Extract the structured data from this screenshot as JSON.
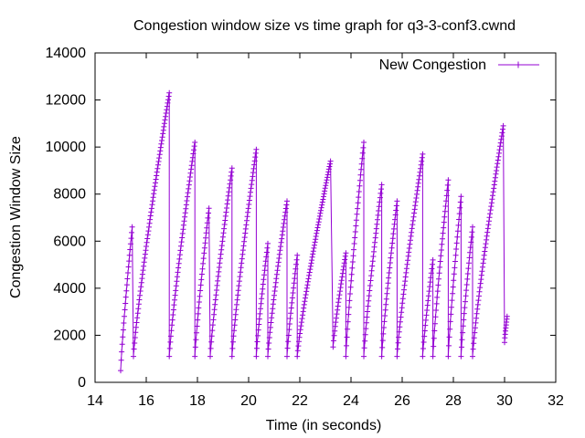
{
  "chart_data": {
    "type": "line",
    "title": "Congestion window size vs time graph for q3-3-conf3.cwnd",
    "xlabel": "Time (in seconds)",
    "ylabel": "Congestion Window Size",
    "xlim": [
      14,
      32
    ],
    "ylim": [
      0,
      14000
    ],
    "x_ticks": [
      14,
      16,
      18,
      20,
      22,
      24,
      26,
      28,
      30,
      32
    ],
    "y_ticks": [
      0,
      2000,
      4000,
      6000,
      8000,
      10000,
      12000,
      14000
    ],
    "grid": false,
    "legend_position": "top-right",
    "series": [
      {
        "name": "New Congestion",
        "color": "#9400d3",
        "marker": "plus",
        "cycles": [
          {
            "t0": 15.0,
            "t1": 15.45,
            "y0": 500,
            "y1": 6600
          },
          {
            "t0": 15.5,
            "t1": 16.9,
            "y0": 1100,
            "y1": 12300
          },
          {
            "t0": 16.9,
            "t1": 17.9,
            "y0": 1100,
            "y1": 10200
          },
          {
            "t0": 17.9,
            "t1": 18.45,
            "y0": 1100,
            "y1": 7400
          },
          {
            "t0": 18.5,
            "t1": 19.35,
            "y0": 1100,
            "y1": 9100
          },
          {
            "t0": 19.35,
            "t1": 20.3,
            "y0": 1100,
            "y1": 9900
          },
          {
            "t0": 20.3,
            "t1": 20.75,
            "y0": 1100,
            "y1": 5900
          },
          {
            "t0": 20.75,
            "t1": 21.5,
            "y0": 1100,
            "y1": 7700
          },
          {
            "t0": 21.5,
            "t1": 21.9,
            "y0": 1100,
            "y1": 5400
          },
          {
            "t0": 21.9,
            "t1": 23.2,
            "y0": 1100,
            "y1": 9400
          },
          {
            "t0": 23.3,
            "t1": 23.8,
            "y0": 1500,
            "y1": 5500
          },
          {
            "t0": 23.8,
            "t1": 24.5,
            "y0": 1100,
            "y1": 10200
          },
          {
            "t0": 24.5,
            "t1": 25.2,
            "y0": 1100,
            "y1": 8400
          },
          {
            "t0": 25.2,
            "t1": 25.8,
            "y0": 1100,
            "y1": 7700
          },
          {
            "t0": 25.8,
            "t1": 26.8,
            "y0": 1100,
            "y1": 9700
          },
          {
            "t0": 26.8,
            "t1": 27.2,
            "y0": 1100,
            "y1": 5200
          },
          {
            "t0": 27.2,
            "t1": 27.8,
            "y0": 1100,
            "y1": 8600
          },
          {
            "t0": 27.8,
            "t1": 28.3,
            "y0": 1100,
            "y1": 7900
          },
          {
            "t0": 28.3,
            "t1": 28.75,
            "y0": 1100,
            "y1": 6600
          },
          {
            "t0": 28.75,
            "t1": 29.95,
            "y0": 1100,
            "y1": 10900
          },
          {
            "t0": 30.0,
            "t1": 30.1,
            "y0": 1700,
            "y1": 2800
          }
        ]
      }
    ]
  }
}
